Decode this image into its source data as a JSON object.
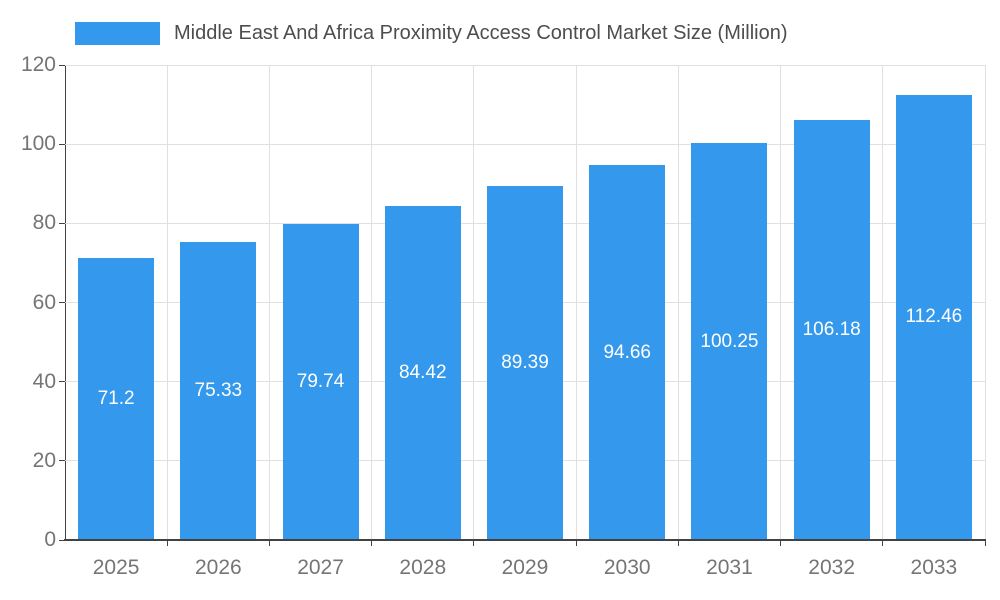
{
  "chart_data": {
    "type": "bar",
    "title": "Middle East And Africa Proximity Access Control Market Size (Million)",
    "categories": [
      "2025",
      "2026",
      "2027",
      "2028",
      "2029",
      "2030",
      "2031",
      "2032",
      "2033"
    ],
    "values": [
      71.2,
      75.33,
      79.74,
      84.42,
      89.39,
      94.66,
      100.25,
      106.18,
      112.46
    ],
    "value_labels": [
      "71.2",
      "75.33",
      "79.74",
      "84.42",
      "89.39",
      "94.66",
      "100.25",
      "106.18",
      "112.46"
    ],
    "xlabel": "",
    "ylabel": "",
    "ylim": [
      0,
      120
    ],
    "yticks": [
      0,
      20,
      40,
      60,
      80,
      100,
      120
    ],
    "grid": true,
    "legend_position": "top-left",
    "colors": {
      "bar": "#3498EC",
      "label_text": "#FFFFFF",
      "axis_text": "#757575",
      "title_text": "#4D4D4D",
      "gridline": "#E0E0E0",
      "axis_line": "#424242",
      "background": "#FFFFFF"
    }
  }
}
